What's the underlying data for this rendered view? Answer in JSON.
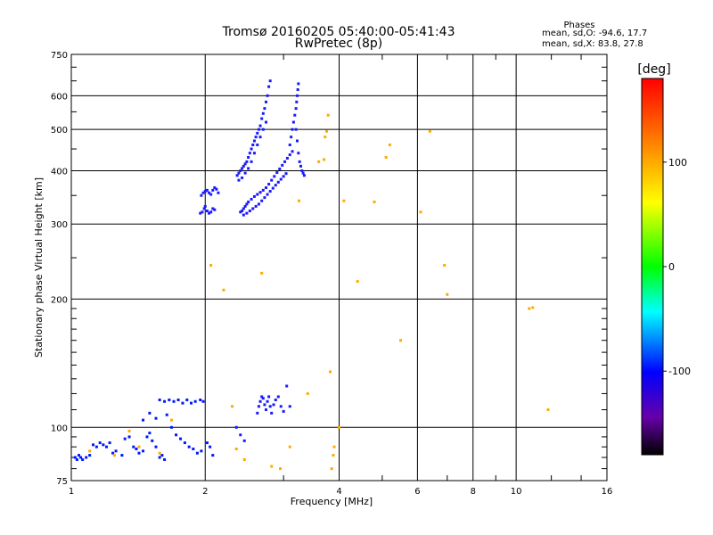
{
  "chart_data": {
    "type": "scatter",
    "title": "Tromsø 20160205 05:40:00-05:41:43",
    "subtitle": "RwPretec (8p)",
    "xlabel": "Frequency [MHz]",
    "ylabel": "Stationary phase Virtual Height [km]",
    "x_scale": "log",
    "y_scale": "log",
    "xlim": [
      1,
      16
    ],
    "ylim": [
      75,
      750
    ],
    "x_ticks": [
      1,
      2,
      4,
      6,
      8,
      10,
      16
    ],
    "y_ticks": [
      75,
      100,
      200,
      300,
      400,
      500,
      600,
      750
    ],
    "grid": true,
    "phases_box": {
      "title": "Phases",
      "line1": "mean, sd,O: -94.6, 17.7",
      "line2": "mean, sd,X: 83.8, 27.8"
    },
    "colorbar": {
      "label": "[deg]",
      "range": [
        -180,
        180
      ],
      "ticks": [
        100,
        0,
        -100
      ],
      "colors": [
        "#ff0000",
        "#ff8800",
        "#ffff00",
        "#00ff00",
        "#00ffff",
        "#0000ff",
        "#6600aa",
        "#000000"
      ]
    },
    "series": [
      {
        "points": [
          [
            1.02,
            85
          ],
          [
            1.03,
            84
          ],
          [
            1.04,
            86
          ],
          [
            1.05,
            85
          ],
          [
            1.06,
            84
          ],
          [
            1.08,
            85
          ],
          [
            1.1,
            86
          ],
          [
            1.12,
            91
          ],
          [
            1.14,
            90
          ],
          [
            1.16,
            92
          ],
          [
            1.18,
            91
          ],
          [
            1.2,
            90
          ],
          [
            1.22,
            92
          ],
          [
            1.24,
            87
          ],
          [
            1.26,
            88
          ],
          [
            1.3,
            86
          ],
          [
            1.32,
            94
          ],
          [
            1.35,
            95
          ],
          [
            1.38,
            90
          ],
          [
            1.4,
            89
          ],
          [
            1.42,
            87
          ],
          [
            1.45,
            88
          ],
          [
            1.48,
            95
          ],
          [
            1.5,
            97
          ],
          [
            1.52,
            93
          ],
          [
            1.55,
            90
          ],
          [
            1.58,
            85
          ],
          [
            1.6,
            86
          ],
          [
            1.62,
            84
          ],
          [
            1.45,
            104
          ],
          [
            1.5,
            108
          ],
          [
            1.55,
            105
          ],
          [
            1.58,
            116
          ],
          [
            1.62,
            115
          ],
          [
            1.66,
            116
          ],
          [
            1.7,
            115
          ],
          [
            1.74,
            116
          ],
          [
            1.78,
            114
          ],
          [
            1.82,
            116
          ],
          [
            1.86,
            114
          ],
          [
            1.9,
            115
          ],
          [
            1.95,
            116
          ],
          [
            1.98,
            115
          ],
          [
            1.64,
            107
          ],
          [
            1.68,
            100
          ],
          [
            1.72,
            96
          ],
          [
            1.76,
            94
          ],
          [
            1.8,
            92
          ],
          [
            1.84,
            90
          ],
          [
            1.88,
            89
          ],
          [
            1.92,
            87
          ],
          [
            1.96,
            88
          ],
          [
            2.02,
            92
          ],
          [
            2.05,
            90
          ],
          [
            2.08,
            86
          ]
        ],
        "color": "#0018ff"
      },
      {
        "points": [
          [
            1.95,
            318
          ],
          [
            1.97,
            320
          ],
          [
            1.99,
            326
          ],
          [
            2.0,
            330
          ],
          [
            2.02,
            322
          ],
          [
            2.04,
            318
          ],
          [
            2.06,
            320
          ],
          [
            2.08,
            326
          ],
          [
            2.1,
            324
          ],
          [
            1.96,
            350
          ],
          [
            1.98,
            355
          ],
          [
            2.0,
            358
          ],
          [
            2.02,
            360
          ],
          [
            2.04,
            355
          ],
          [
            2.06,
            352
          ],
          [
            2.08,
            360
          ],
          [
            2.1,
            365
          ],
          [
            2.12,
            362
          ],
          [
            2.14,
            355
          ],
          [
            2.36,
            390
          ],
          [
            2.38,
            395
          ],
          [
            2.4,
            400
          ],
          [
            2.42,
            405
          ],
          [
            2.44,
            410
          ],
          [
            2.46,
            415
          ],
          [
            2.48,
            420
          ],
          [
            2.5,
            430
          ],
          [
            2.52,
            440
          ],
          [
            2.54,
            450
          ],
          [
            2.56,
            460
          ],
          [
            2.58,
            470
          ],
          [
            2.6,
            480
          ],
          [
            2.62,
            490
          ],
          [
            2.64,
            500
          ],
          [
            2.66,
            510
          ],
          [
            2.68,
            530
          ],
          [
            2.7,
            545
          ],
          [
            2.72,
            560
          ],
          [
            2.74,
            580
          ],
          [
            2.76,
            600
          ],
          [
            2.78,
            630
          ],
          [
            2.8,
            650
          ],
          [
            2.38,
            380
          ],
          [
            2.42,
            385
          ],
          [
            2.46,
            395
          ],
          [
            2.5,
            405
          ],
          [
            2.54,
            420
          ],
          [
            2.58,
            440
          ],
          [
            2.62,
            460
          ],
          [
            2.66,
            480
          ],
          [
            2.7,
            500
          ],
          [
            2.74,
            520
          ],
          [
            2.4,
            320
          ],
          [
            2.42,
            322
          ],
          [
            2.44,
            326
          ],
          [
            2.46,
            330
          ],
          [
            2.48,
            334
          ],
          [
            2.5,
            338
          ],
          [
            2.54,
            343
          ],
          [
            2.58,
            348
          ],
          [
            2.62,
            352
          ],
          [
            2.66,
            356
          ],
          [
            2.7,
            360
          ],
          [
            2.74,
            365
          ],
          [
            2.78,
            372
          ],
          [
            2.82,
            380
          ],
          [
            2.86,
            388
          ],
          [
            2.9,
            396
          ],
          [
            2.94,
            404
          ],
          [
            2.98,
            412
          ],
          [
            3.02,
            420
          ],
          [
            3.06,
            428
          ],
          [
            3.1,
            436
          ],
          [
            3.14,
            444
          ],
          [
            2.44,
            315
          ],
          [
            2.48,
            318
          ],
          [
            2.52,
            322
          ],
          [
            2.56,
            326
          ],
          [
            2.6,
            330
          ],
          [
            2.64,
            334
          ],
          [
            2.68,
            340
          ],
          [
            2.72,
            346
          ],
          [
            2.76,
            352
          ],
          [
            2.8,
            358
          ],
          [
            2.84,
            364
          ],
          [
            2.88,
            370
          ],
          [
            2.92,
            376
          ],
          [
            2.96,
            382
          ],
          [
            3.0,
            388
          ],
          [
            3.04,
            394
          ],
          [
            3.1,
            460
          ],
          [
            3.12,
            480
          ],
          [
            3.14,
            500
          ],
          [
            3.16,
            520
          ],
          [
            3.18,
            540
          ],
          [
            3.2,
            560
          ],
          [
            3.21,
            580
          ],
          [
            3.22,
            600
          ],
          [
            3.23,
            620
          ],
          [
            3.24,
            640
          ],
          [
            3.2,
            500
          ],
          [
            3.22,
            470
          ],
          [
            3.24,
            440
          ],
          [
            3.26,
            420
          ],
          [
            3.28,
            410
          ],
          [
            3.3,
            400
          ],
          [
            3.32,
            395
          ],
          [
            3.34,
            390
          ],
          [
            2.62,
            108
          ],
          [
            2.64,
            112
          ],
          [
            2.66,
            115
          ],
          [
            2.68,
            118
          ],
          [
            2.7,
            117
          ],
          [
            2.72,
            113
          ],
          [
            2.74,
            110
          ],
          [
            2.76,
            115
          ],
          [
            2.78,
            118
          ],
          [
            2.8,
            112
          ],
          [
            2.82,
            108
          ],
          [
            2.85,
            113
          ],
          [
            2.88,
            116
          ],
          [
            2.92,
            118
          ],
          [
            2.96,
            112
          ],
          [
            3.0,
            109
          ],
          [
            3.05,
            125
          ],
          [
            3.1,
            112
          ],
          [
            2.35,
            100
          ],
          [
            2.4,
            96
          ],
          [
            2.45,
            93
          ]
        ],
        "color": "#1a1aff"
      },
      {
        "points": [
          [
            1.1,
            88
          ],
          [
            1.25,
            86
          ],
          [
            1.35,
            98
          ],
          [
            1.42,
            90
          ],
          [
            1.58,
            87
          ],
          [
            1.68,
            104
          ],
          [
            2.06,
            240
          ],
          [
            2.2,
            210
          ],
          [
            2.3,
            112
          ],
          [
            2.35,
            89
          ],
          [
            2.45,
            84
          ],
          [
            2.68,
            230
          ],
          [
            2.82,
            81
          ],
          [
            2.95,
            80
          ],
          [
            3.1,
            90
          ],
          [
            3.25,
            340
          ],
          [
            3.4,
            120
          ],
          [
            3.6,
            420
          ],
          [
            3.7,
            425
          ],
          [
            3.72,
            480
          ],
          [
            3.75,
            495
          ],
          [
            3.78,
            540
          ],
          [
            3.82,
            135
          ],
          [
            3.85,
            80
          ],
          [
            3.88,
            86
          ],
          [
            3.9,
            90
          ],
          [
            4.0,
            100
          ],
          [
            4.1,
            340
          ],
          [
            4.4,
            220
          ],
          [
            4.8,
            338
          ],
          [
            5.1,
            430
          ],
          [
            5.2,
            460
          ],
          [
            5.5,
            160
          ],
          [
            6.1,
            320
          ],
          [
            6.4,
            495
          ],
          [
            6.9,
            240
          ],
          [
            7.0,
            205
          ],
          [
            10.7,
            190
          ],
          [
            10.9,
            191
          ],
          [
            11.8,
            110
          ]
        ],
        "color": "#ffaa00"
      }
    ]
  }
}
